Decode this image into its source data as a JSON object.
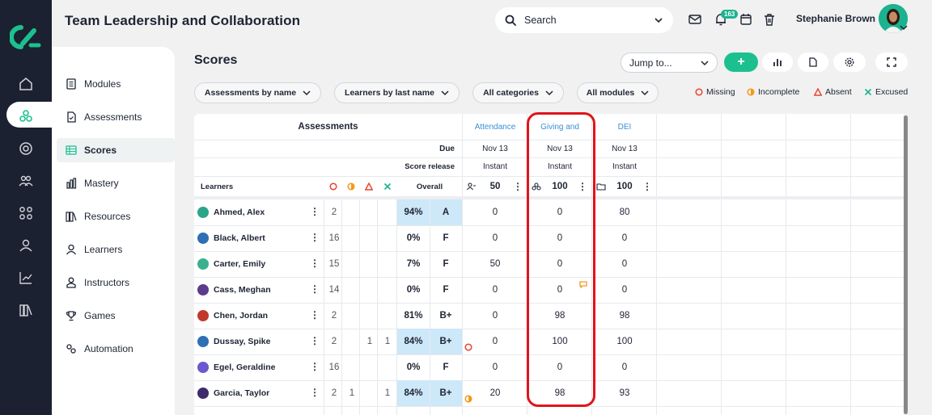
{
  "app": {
    "title": "Team Leadership and Collaboration",
    "brand_color": "#1cc08f"
  },
  "header": {
    "search_placeholder": "Search",
    "notification_count": "163",
    "user_name": "Stephanie Brown",
    "icons": [
      "mail-icon",
      "bell-icon",
      "calendar-icon",
      "trash-icon"
    ]
  },
  "rail": {
    "icons": [
      "home-icon",
      "courses-icon",
      "target-icon",
      "people-icon",
      "grid-icon",
      "user-icon",
      "chart-icon",
      "library-icon"
    ],
    "active_index": 1
  },
  "sidebar": {
    "items": [
      {
        "label": "Modules",
        "icon": "modules-icon"
      },
      {
        "label": "Assessments",
        "icon": "assessments-icon"
      },
      {
        "label": "Scores",
        "icon": "scores-icon",
        "active": true
      },
      {
        "label": "Mastery",
        "icon": "mastery-icon"
      },
      {
        "label": "Resources",
        "icon": "resources-icon"
      },
      {
        "label": "Learners",
        "icon": "learners-icon"
      },
      {
        "label": "Instructors",
        "icon": "instructors-icon"
      },
      {
        "label": "Games",
        "icon": "games-icon"
      },
      {
        "label": "Automation",
        "icon": "automation-icon"
      }
    ]
  },
  "scores": {
    "title": "Scores",
    "jump_to": "Jump to...",
    "add": "+",
    "filters": [
      "Assessments by name",
      "Learners by last name",
      "All categories",
      "All modules"
    ],
    "legend": [
      {
        "label": "Missing",
        "color": "#e8432e"
      },
      {
        "label": "Incomplete",
        "color": "#f29a1a"
      },
      {
        "label": "Absent",
        "color": "#e8432e"
      },
      {
        "label": "Excused",
        "color": "#1db28f"
      }
    ]
  },
  "table": {
    "assessments_header": "Assessments",
    "due_label": "Due",
    "release_label": "Score release",
    "learners_label": "Learners",
    "overall_label": "Overall",
    "columns": [
      {
        "name": "Attendance",
        "due": "Nov 13",
        "release": "Instant",
        "max": "50"
      },
      {
        "name": "Giving and",
        "due": "Nov 13",
        "release": "Instant",
        "max": "100"
      },
      {
        "name": "DEI",
        "due": "Nov 13",
        "release": "Instant",
        "max": "100"
      }
    ],
    "rows": [
      {
        "name": "Ahmed, Alex",
        "missing": "2",
        "incomplete": "",
        "absent": "",
        "excused": "",
        "pct": "94%",
        "grade": "A",
        "scores": [
          "0",
          "0",
          "80"
        ],
        "highlight": true,
        "avatar": "#2aa58a"
      },
      {
        "name": "Black, Albert",
        "missing": "16",
        "incomplete": "",
        "absent": "",
        "excused": "",
        "pct": "0%",
        "grade": "F",
        "scores": [
          "0",
          "0",
          "0"
        ],
        "highlight": false,
        "avatar": "#2f6fb3"
      },
      {
        "name": "Carter, Emily",
        "missing": "15",
        "incomplete": "",
        "absent": "",
        "excused": "",
        "pct": "7%",
        "grade": "F",
        "scores": [
          "50",
          "0",
          "0"
        ],
        "highlight": false,
        "avatar": "#3bb08f"
      },
      {
        "name": "Cass, Meghan",
        "missing": "14",
        "incomplete": "",
        "absent": "",
        "excused": "",
        "pct": "0%",
        "grade": "F",
        "scores": [
          "0",
          "0",
          "0"
        ],
        "highlight": false,
        "avatar": "#5b3b8c"
      },
      {
        "name": "Chen, Jordan",
        "missing": "2",
        "incomplete": "",
        "absent": "",
        "excused": "",
        "pct": "81%",
        "grade": "B+",
        "scores": [
          "0",
          "98",
          "98"
        ],
        "highlight": false,
        "avatar": "#c0392b"
      },
      {
        "name": "Dussay, Spike",
        "missing": "2",
        "incomplete": "",
        "absent": "1",
        "excused": "1",
        "pct": "84%",
        "grade": "B+",
        "scores": [
          "0",
          "100",
          "100"
        ],
        "highlight": true,
        "avatar": "#2f6fb3"
      },
      {
        "name": "Egel, Geraldine",
        "missing": "16",
        "incomplete": "",
        "absent": "",
        "excused": "",
        "pct": "0%",
        "grade": "F",
        "scores": [
          "0",
          "0",
          "0"
        ],
        "highlight": false,
        "avatar": "#6a5acd"
      },
      {
        "name": "Garcia, Taylor",
        "missing": "2",
        "incomplete": "1",
        "absent": "",
        "excused": "1",
        "pct": "84%",
        "grade": "B+",
        "scores": [
          "20",
          "98",
          "93"
        ],
        "highlight": true,
        "avatar": "#3d2b6b"
      }
    ]
  }
}
